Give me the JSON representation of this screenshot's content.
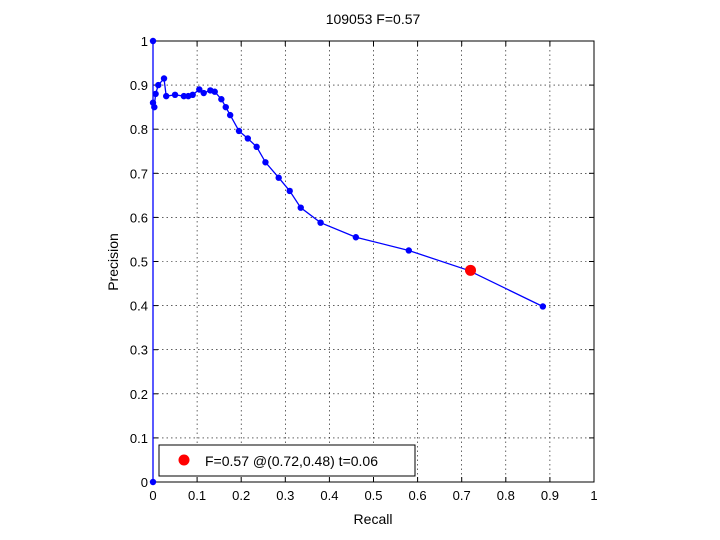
{
  "chart_data": {
    "type": "line",
    "title": "109053 F=0.57",
    "xlabel": "Recall",
    "ylabel": "Precision",
    "xlim": [
      0,
      1
    ],
    "ylim": [
      0,
      1
    ],
    "grid": true,
    "xticks": [
      "0",
      "0.1",
      "0.2",
      "0.3",
      "0.4",
      "0.5",
      "0.6",
      "0.7",
      "0.8",
      "0.9",
      "1"
    ],
    "yticks": [
      "0",
      "0.1",
      "0.2",
      "0.3",
      "0.4",
      "0.5",
      "0.6",
      "0.7",
      "0.8",
      "0.9",
      "1"
    ],
    "legend_position": "bottom-left",
    "series": [
      {
        "color": "#0000ff",
        "marker": "dot",
        "x": [
          0.0,
          0.0,
          0.0,
          0.003,
          0.006,
          0.012,
          0.025,
          0.03,
          0.05,
          0.07,
          0.08,
          0.09,
          0.105,
          0.115,
          0.13,
          0.14,
          0.155,
          0.165,
          0.175,
          0.195,
          0.215,
          0.235,
          0.255,
          0.285,
          0.31,
          0.335,
          0.38,
          0.46,
          0.58,
          0.715,
          0.884
        ],
        "y": [
          0.0,
          1.0,
          0.86,
          0.85,
          0.88,
          0.9,
          0.915,
          0.875,
          0.878,
          0.875,
          0.875,
          0.878,
          0.89,
          0.882,
          0.888,
          0.885,
          0.868,
          0.85,
          0.832,
          0.796,
          0.779,
          0.76,
          0.725,
          0.69,
          0.66,
          0.622,
          0.588,
          0.555,
          0.525,
          0.48,
          0.398
        ]
      }
    ],
    "highlight_point": {
      "x": 0.72,
      "y": 0.48,
      "color": "#ff0000"
    },
    "legend": {
      "text": "F=0.57 @(0.72,0.48) t=0.06",
      "marker_color": "#ff0000"
    }
  }
}
